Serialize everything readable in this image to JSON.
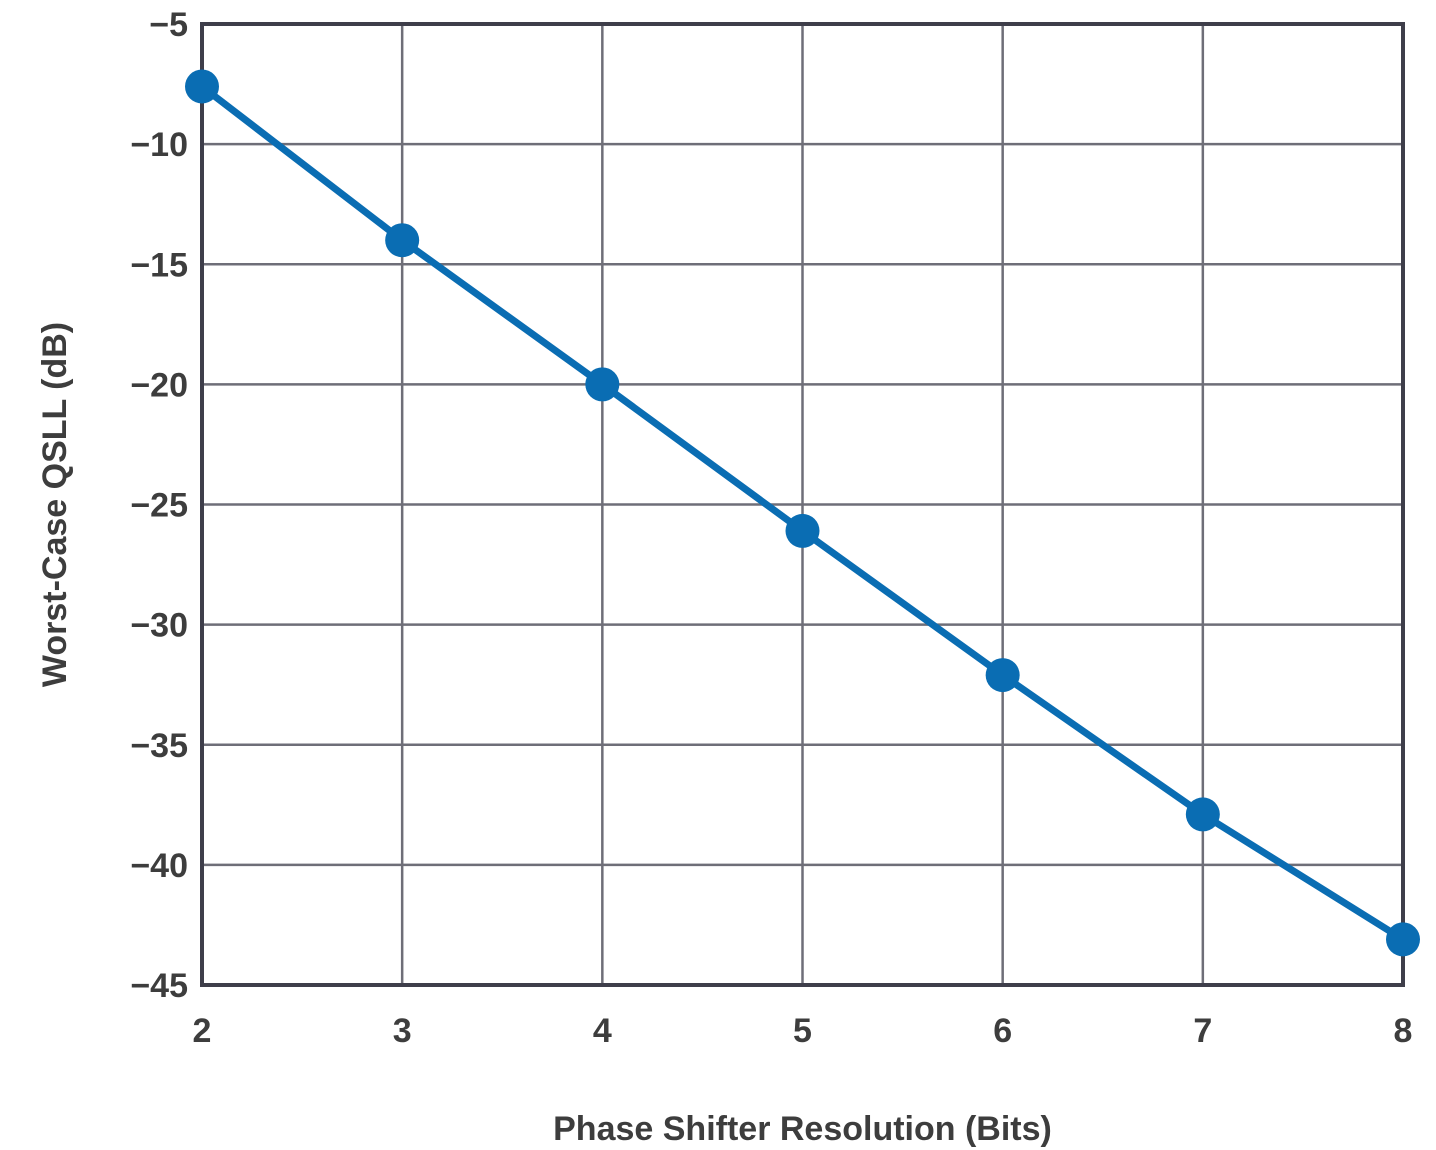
{
  "chart_data": {
    "type": "line",
    "title": "",
    "xlabel": "Phase Shifter Resolution (Bits)",
    "ylabel": "Worst-Case QSLL (dB)",
    "xlim": [
      2,
      8
    ],
    "ylim": [
      -45,
      -5
    ],
    "x_ticks": [
      2,
      3,
      4,
      5,
      6,
      7,
      8
    ],
    "y_ticks": [
      -5,
      -10,
      -15,
      -20,
      -25,
      -30,
      -35,
      -40,
      -45
    ],
    "x_tick_labels": [
      "2",
      "3",
      "4",
      "5",
      "6",
      "7",
      "8"
    ],
    "y_tick_labels": [
      "−5",
      "−10",
      "−15",
      "−20",
      "−25",
      "−30",
      "−35",
      "−40",
      "−45"
    ],
    "grid": true,
    "legend": "none",
    "series": [
      {
        "color": "#0a6db3",
        "x": [
          2,
          3,
          4,
          5,
          6,
          7,
          8
        ],
        "y": [
          -7.6,
          -14.0,
          -20.0,
          -26.1,
          -32.1,
          -37.9,
          -43.1
        ]
      }
    ],
    "colors": {
      "line": "#0a6db3",
      "grid": "#6e6e78",
      "frame": "#3e3e4a",
      "text": "#3d3d3d"
    }
  }
}
